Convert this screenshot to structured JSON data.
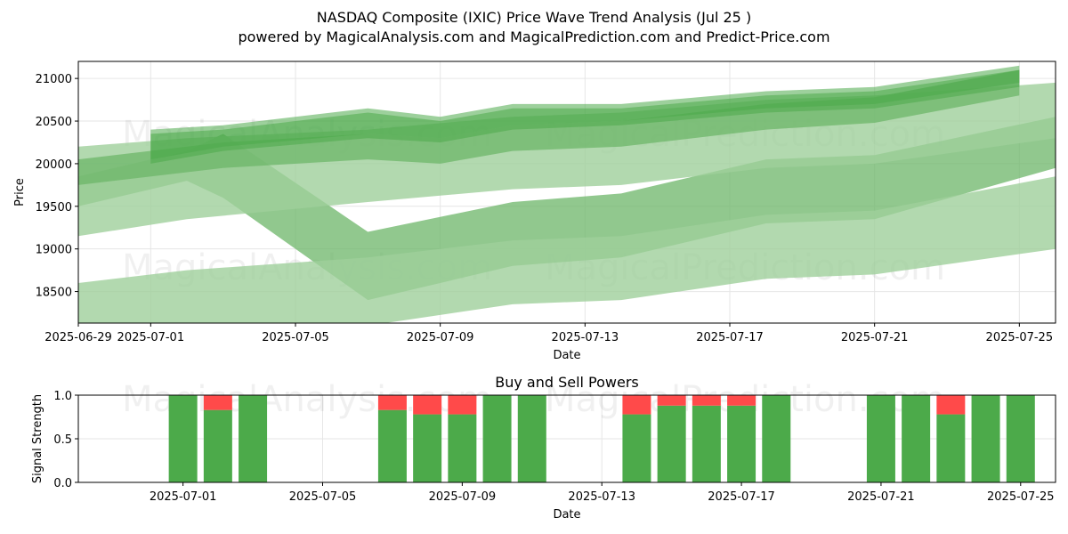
{
  "header": {
    "title": "NASDAQ Composite (IXIC) Price Wave Trend Analysis (Jul 25 )",
    "subtitle": "powered by MagicalAnalysis.com and MagicalPrediction.com and Predict-Price.com"
  },
  "watermarks": [
    "MagicalAnalysis.com",
    "MagicalPrediction.com"
  ],
  "colors": {
    "band_light": "#9fd09b",
    "band_mid": "#6cb568",
    "band_dark": "#4caa4a",
    "buy": "#4caa4a",
    "sell": "#ff4a4a",
    "grid": "#e6e6e6"
  },
  "chart_data": [
    {
      "type": "area",
      "xlabel": "Date",
      "ylabel": "Price",
      "ylim": [
        18130,
        21200
      ],
      "xlim": [
        "2025-06-29",
        "2025-07-26"
      ],
      "x_ticks": [
        "2025-06-29",
        "2025-07-01",
        "2025-07-05",
        "2025-07-09",
        "2025-07-13",
        "2025-07-17",
        "2025-07-21",
        "2025-07-25"
      ],
      "y_ticks": [
        18500,
        19000,
        19500,
        20000,
        20500,
        21000
      ],
      "grid": true,
      "series": [
        {
          "x": [
            "2025-06-29",
            "2025-07-02",
            "2025-07-03",
            "2025-07-07",
            "2025-07-11",
            "2025-07-14",
            "2025-07-18",
            "2025-07-21",
            "2025-07-26"
          ],
          "upper": [
            19850,
            20150,
            20350,
            19200,
            19550,
            19650,
            20050,
            20100,
            20550
          ],
          "lower": [
            19500,
            19800,
            19600,
            18400,
            18800,
            18900,
            19300,
            19350,
            19950
          ],
          "shade": "mid"
        },
        {
          "x": [
            "2025-06-29",
            "2025-07-02",
            "2025-07-07",
            "2025-07-11",
            "2025-07-14",
            "2025-07-18",
            "2025-07-21",
            "2025-07-26"
          ],
          "upper": [
            20200,
            20300,
            20400,
            20550,
            20600,
            20750,
            20800,
            20950
          ],
          "lower": [
            19150,
            19350,
            19550,
            19700,
            19750,
            19950,
            20000,
            20300
          ],
          "shade": "light"
        },
        {
          "x": [
            "2025-06-29",
            "2025-07-02",
            "2025-07-07",
            "2025-07-11",
            "2025-07-14",
            "2025-07-18",
            "2025-07-21",
            "2025-07-26"
          ],
          "upper": [
            18600,
            18750,
            18900,
            19100,
            19150,
            19400,
            19450,
            19850
          ],
          "lower": [
            17900,
            18050,
            18100,
            18350,
            18400,
            18650,
            18700,
            19000
          ],
          "shade": "light"
        },
        {
          "x": [
            "2025-06-29",
            "2025-07-03",
            "2025-07-07",
            "2025-07-09",
            "2025-07-11",
            "2025-07-14",
            "2025-07-18",
            "2025-07-21",
            "2025-07-25"
          ],
          "upper": [
            20050,
            20250,
            20350,
            20300,
            20450,
            20500,
            20700,
            20780,
            21100
          ],
          "lower": [
            19750,
            19950,
            20050,
            20000,
            20150,
            20200,
            20400,
            20480,
            20800
          ],
          "shade": "mid"
        },
        {
          "x": [
            "2025-07-01",
            "2025-07-03",
            "2025-07-07",
            "2025-07-09",
            "2025-07-11",
            "2025-07-14",
            "2025-07-18",
            "2025-07-21",
            "2025-07-25"
          ],
          "upper": [
            20400,
            20450,
            20650,
            20550,
            20700,
            20700,
            20850,
            20900,
            21150
          ],
          "lower": [
            20000,
            20150,
            20300,
            20250,
            20400,
            20450,
            20600,
            20650,
            20900
          ],
          "shade": "dark"
        },
        {
          "x": [
            "2025-07-01",
            "2025-07-03",
            "2025-07-07",
            "2025-07-09",
            "2025-07-11",
            "2025-07-14",
            "2025-07-18",
            "2025-07-21",
            "2025-07-25"
          ],
          "upper": [
            20350,
            20400,
            20600,
            20500,
            20650,
            20650,
            20800,
            20850,
            21100
          ],
          "lower": [
            20050,
            20200,
            20350,
            20300,
            20450,
            20500,
            20650,
            20700,
            20950
          ],
          "shade": "dark"
        }
      ]
    },
    {
      "type": "bar",
      "title": "Buy and Sell Powers",
      "xlabel": "Date",
      "ylabel": "Signal Strength",
      "ylim": [
        0,
        1
      ],
      "y_ticks": [
        "0.0",
        "0.5",
        "1.0"
      ],
      "x_ticks": [
        "2025-07-01",
        "2025-07-05",
        "2025-07-09",
        "2025-07-13",
        "2025-07-17",
        "2025-07-21",
        "2025-07-25"
      ],
      "grid": true,
      "categories": [
        "2025-07-01",
        "2025-07-02",
        "2025-07-03",
        "2025-07-07",
        "2025-07-08",
        "2025-07-09",
        "2025-07-10",
        "2025-07-11",
        "2025-07-14",
        "2025-07-15",
        "2025-07-16",
        "2025-07-17",
        "2025-07-18",
        "2025-07-21",
        "2025-07-22",
        "2025-07-23",
        "2025-07-24",
        "2025-07-25"
      ],
      "series": [
        {
          "name": "Buy",
          "values": [
            1.0,
            0.83,
            1.0,
            0.83,
            0.78,
            0.78,
            1.0,
            1.0,
            0.78,
            0.88,
            0.88,
            0.88,
            1.0,
            1.0,
            1.0,
            0.78,
            1.0,
            1.0
          ]
        },
        {
          "name": "Sell",
          "values": [
            0.0,
            0.17,
            0.0,
            0.17,
            0.22,
            0.22,
            0.0,
            0.0,
            0.22,
            0.12,
            0.12,
            0.12,
            0.0,
            0.0,
            0.0,
            0.22,
            0.0,
            0.0
          ]
        }
      ]
    }
  ]
}
